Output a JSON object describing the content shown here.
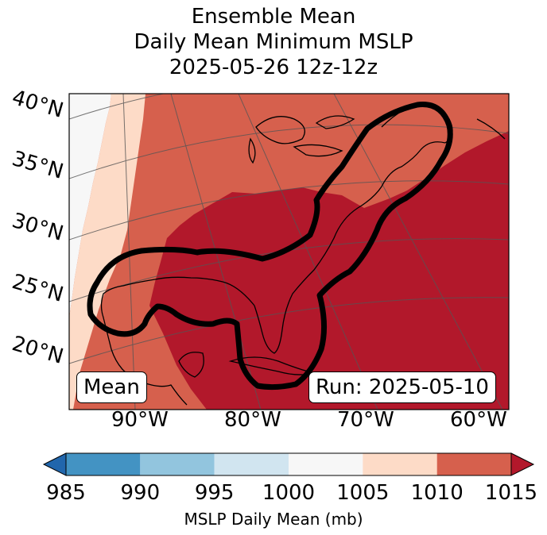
{
  "title": {
    "line1": "Ensemble Mean",
    "line2": "Daily Mean Minimum MSLP",
    "line3": "2025-05-26 12z-12z"
  },
  "map": {
    "lat_labels": [
      "40°N",
      "35°N",
      "30°N",
      "25°N",
      "20°N"
    ],
    "lon_labels": [
      "90°W",
      "80°W",
      "70°W",
      "60°W"
    ],
    "mean_box": "Mean",
    "run_box": "Run: 2025-05-10"
  },
  "colorbar": {
    "ticks": [
      "985",
      "990",
      "995",
      "1000",
      "1005",
      "1010",
      "1015"
    ],
    "colors": [
      "#4393c3",
      "#92c5de",
      "#d1e5f0",
      "#f7f7f7",
      "#fddbc7",
      "#d6604d",
      "#b2182b"
    ],
    "under_color": "#2166ac",
    "over_color": "#b2182b",
    "label": "MSLP Daily Mean (mb)"
  }
}
